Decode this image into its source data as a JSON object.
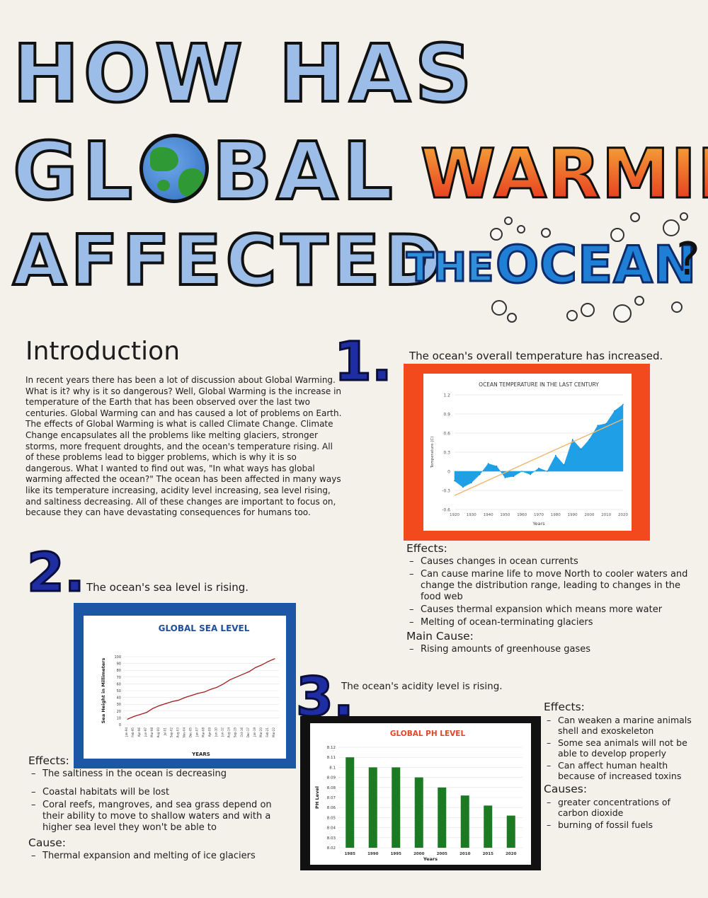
{
  "title": {
    "line1": "HOW HAS",
    "global_prefix": "GL",
    "global_suffix": "BAL",
    "warming": "WARMING",
    "affected": "AFFECTED",
    "the": "THE",
    "ocean": "OCEAN",
    "question_mark": "?",
    "globe_icon": "earth-globe-icon",
    "colors": {
      "title_blue": "#9dbde9",
      "warming_top": "#f7b23b",
      "warming_bottom": "#e4261c",
      "ocean_blue": "#1f7fd4"
    }
  },
  "intro": {
    "heading": "Introduction",
    "body": "In recent years there has been a lot of discussion about Global Warming. What is it? why is it so dangerous? Well, Global Warming is the increase in temperature of the Earth that has been observed over the last two centuries. Global Warming can and has caused a lot of problems on Earth. The effects of Global Warming is what is called Climate Change. Climate Change encapsulates all the problems like melting glaciers, stronger storms, more frequent droughts, and the ocean's temperature rising. All of these problems lead to bigger problems, which is why it is so dangerous. What I wanted to find out was, \"In what ways has global warming affected the ocean?\" The ocean has been affected in many ways like its temperature increasing, acidity level increasing, sea level rising, and saltiness decreasing. All of these changes are important to focus on, because they can have devastating consequences for humans too."
  },
  "section1": {
    "number": "1.",
    "caption": "The ocean's overall temperature has increased.",
    "effects_label": "Effects:",
    "effects": [
      "Causes changes in ocean currents",
      "Can cause marine life to move North to cooler waters and change the distribution range, leading to changes in the food web",
      "Causes thermal expansion which means more water",
      "Melting of ocean-terminating glaciers"
    ],
    "cause_label": "Main Cause:",
    "causes": [
      "Rising amounts of greenhouse gases"
    ]
  },
  "section2": {
    "number": "2.",
    "caption": "The ocean's sea level is rising.",
    "effects_label": "Effects:",
    "effects": [
      "The saltiness in the ocean is decreasing",
      "Coastal habitats will be lost",
      "Coral reefs, mangroves, and sea grass depend on their ability to move to shallow waters and with a higher sea level they won't be able to"
    ],
    "cause_label": "Cause:",
    "causes": [
      "Thermal expansion and melting of ice glaciers"
    ]
  },
  "section3": {
    "number": "3.",
    "caption": "The ocean's acidity level is rising.",
    "effects_label": "Effects:",
    "effects": [
      "Can weaken a marine animals shell and exoskeleton",
      "Some sea animals will not be able to develop properly",
      "Can affect human health because of increased toxins"
    ],
    "cause_label": "Causes:",
    "causes": [
      "greater concentrations of carbon dioxide",
      "burning of fossil fuels"
    ]
  },
  "chart_data": [
    {
      "type": "area",
      "title": "OCEAN TEMPERATURE IN THE LAST CENTURY",
      "xlabel": "Years",
      "ylabel": "Temperature (C)",
      "xlim": [
        1920,
        2020
      ],
      "ylim": [
        -0.6,
        1.2
      ],
      "x_ticks": [
        1920,
        1930,
        1940,
        1950,
        1960,
        1970,
        1980,
        1990,
        2000,
        2010,
        2020
      ],
      "y_ticks": [
        -0.6,
        -0.3,
        0,
        0.3,
        0.6,
        0.9,
        1.2
      ],
      "x": [
        1920,
        1925,
        1930,
        1935,
        1940,
        1945,
        1950,
        1955,
        1960,
        1965,
        1970,
        1975,
        1980,
        1985,
        1990,
        1995,
        2000,
        2005,
        2010,
        2015,
        2020
      ],
      "values": [
        -0.15,
        -0.25,
        -0.18,
        -0.05,
        0.12,
        0.08,
        -0.1,
        -0.08,
        0.0,
        -0.05,
        0.05,
        0.0,
        0.25,
        0.1,
        0.5,
        0.35,
        0.5,
        0.72,
        0.75,
        0.95,
        1.05
      ],
      "trend": [
        -0.38,
        0.82
      ],
      "colors": {
        "area": "#1fa0e6",
        "trend": "#f2b66b"
      }
    },
    {
      "type": "line",
      "title": "GLOBAL SEA LEVEL",
      "xlabel": "YEARS",
      "ylabel": "Sea Height in Millimeters",
      "ylim": [
        0,
        100
      ],
      "y_ticks": [
        0,
        10,
        20,
        30,
        40,
        50,
        60,
        70,
        80,
        90,
        100
      ],
      "categories": [
        "Jan-94",
        "Feb-95",
        "Apr-96",
        "Jun-97",
        "Mar-98",
        "Aug-00",
        "Jul-01",
        "Sep-02",
        "Aug-03",
        "Nov-04",
        "Dec-05",
        "Jan-07",
        "Mar-08",
        "Apr-09",
        "Jun-10",
        "Jun-12",
        "Aug-14",
        "Sep-15",
        "Oct-16",
        "Dec-17",
        "Jan-19",
        "Mar-20",
        "Feb-21",
        "Mar-22"
      ],
      "values": [
        8,
        12,
        15,
        18,
        24,
        28,
        31,
        34,
        36,
        40,
        43,
        46,
        48,
        52,
        55,
        60,
        66,
        70,
        74,
        78,
        84,
        88,
        93,
        97
      ],
      "colors": {
        "line": "#a01d1d"
      }
    },
    {
      "type": "bar",
      "title": "GLOBAL PH LEVEL",
      "xlabel": "Years",
      "ylabel": "PH Level",
      "ylim": [
        8.02,
        8.12
      ],
      "y_ticks": [
        8.02,
        8.03,
        8.04,
        8.05,
        8.06,
        8.07,
        8.08,
        8.09,
        8.1,
        8.11,
        8.12
      ],
      "categories": [
        "1985",
        "1990",
        "1995",
        "2000",
        "2005",
        "2010",
        "2015",
        "2020"
      ],
      "values": [
        8.11,
        8.1,
        8.1,
        8.09,
        8.08,
        8.072,
        8.062,
        8.052
      ],
      "colors": {
        "bar": "#1b7a22"
      }
    }
  ]
}
